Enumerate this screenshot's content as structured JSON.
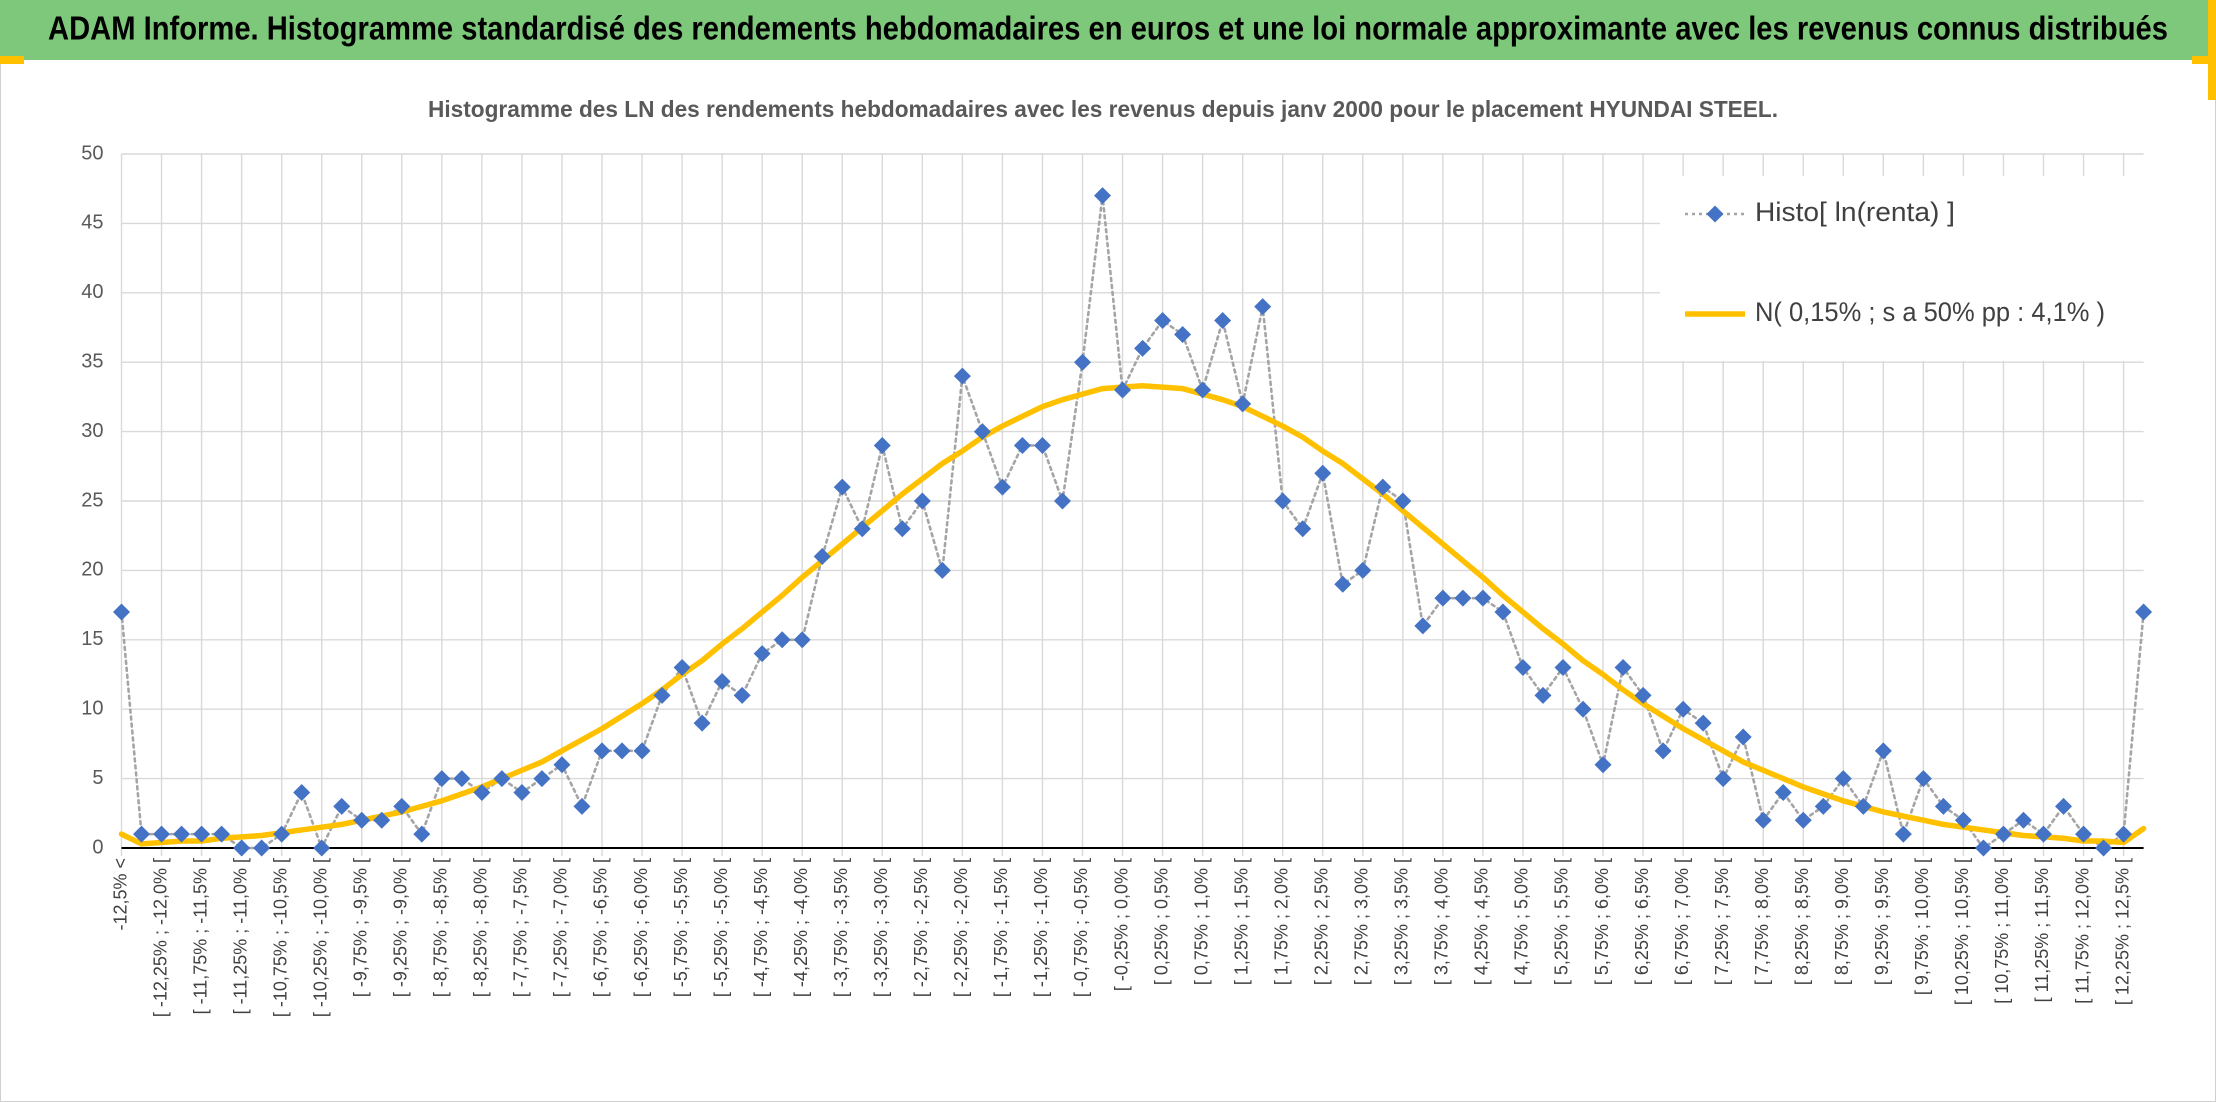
{
  "chart_data": {
    "type": "line",
    "title": "ADAM Informe. Histogramme standardisé des rendements hebdomadaires en euros et une loi normale approximante avec les revenus connus distribués",
    "subtitle": "Histogramme des LN des rendements hebdomadaires avec les revenus depuis janv 2000 pour le placement HYUNDAI STEEL.",
    "categories": [
      "-12,5% <",
      null,
      "[ -12,25% ; -12,0% [",
      null,
      "[ -11,75% ; -11,5% [",
      null,
      "[ -11,25% ; -11,0% [",
      null,
      "[ -10,75% ; -10,5% [",
      null,
      "[ -10,25% ; -10,0% [",
      null,
      "[ -9,75% ; -9,5% [",
      null,
      "[ -9,25% ; -9,0% [",
      null,
      "[ -8,75% ; -8,5% [",
      null,
      "[ -8,25% ; -8,0% [",
      null,
      "[ -7,75% ; -7,5% [",
      null,
      "[ -7,25% ; -7,0% [",
      null,
      "[ -6,75% ; -6,5% [",
      null,
      "[ -6,25% ; -6,0% [",
      null,
      "[ -5,75% ; -5,5% [",
      null,
      "[ -5,25% ; -5,0% [",
      null,
      "[ -4,75% ; -4,5% [",
      null,
      "[ -4,25% ; -4,0% [",
      null,
      "[ -3,75% ; -3,5% [",
      null,
      "[ -3,25% ; -3,0% [",
      null,
      "[ -2,75% ; -2,5% [",
      null,
      "[ -2,25% ; -2,0% [",
      null,
      "[ -1,75% ; -1,5% [",
      null,
      "[ -1,25% ; -1,0% [",
      null,
      "[ -0,75% ; -0,5% [",
      null,
      "[ -0,25% ; 0,0% [",
      null,
      "[ 0,25% ; 0,5% [",
      null,
      "[ 0,75% ; 1,0% [",
      null,
      "[ 1,25% ; 1,5% [",
      null,
      "[ 1,75% ; 2,0% [",
      null,
      "[ 2,25% ; 2,5% [",
      null,
      "[ 2,75% ; 3,0% [",
      null,
      "[ 3,25% ; 3,5% [",
      null,
      "[ 3,75% ; 4,0% [",
      null,
      "[ 4,25% ; 4,5% [",
      null,
      "[ 4,75% ; 5,0% [",
      null,
      "[ 5,25% ; 5,5% [",
      null,
      "[ 5,75% ; 6,0% [",
      null,
      "[ 6,25% ; 6,5% [",
      null,
      "[ 6,75% ; 7,0% [",
      null,
      "[ 7,25% ; 7,5% [",
      null,
      "[ 7,75% ; 8,0% [",
      null,
      "[ 8,25% ; 8,5% [",
      null,
      "[ 8,75% ; 9,0% [",
      null,
      "[ 9,25% ; 9,5% [",
      null,
      "[ 9,75% ; 10,0% [",
      null,
      "[ 10,25% ; 10,5% [",
      null,
      "[ 10,75% ; 11,0% [",
      null,
      "[ 11,25% ; 11,5% [",
      null,
      "[ 11,75% ; 12,0% [",
      null,
      "[ 12,25% ; 12,5% [",
      null
    ],
    "series": [
      {
        "name": "Histo[ ln(renta) ]",
        "color": "#4472c4",
        "line_color": "#a5a5a5",
        "line_style": "dotted",
        "marker": "diamond",
        "values": [
          17,
          1,
          1,
          1,
          1,
          1,
          0,
          0,
          1,
          4,
          0,
          3,
          2,
          2,
          3,
          1,
          5,
          5,
          4,
          5,
          4,
          5,
          6,
          3,
          7,
          7,
          7,
          11,
          13,
          9,
          12,
          11,
          14,
          15,
          15,
          21,
          26,
          23,
          29,
          23,
          25,
          20,
          34,
          30,
          26,
          29,
          29,
          25,
          35,
          47,
          33,
          36,
          38,
          37,
          33,
          38,
          32,
          39,
          25,
          23,
          27,
          19,
          20,
          26,
          25,
          16,
          18,
          18,
          18,
          17,
          13,
          11,
          13,
          10,
          6,
          13,
          11,
          7,
          10,
          9,
          5,
          8,
          2,
          4,
          2,
          3,
          5,
          3,
          7,
          1,
          5,
          3,
          2,
          0,
          1,
          2,
          1,
          3,
          1,
          0,
          1,
          17
        ]
      },
      {
        "name": "N( 0,15% ; s a 50% pp : 4,1% )",
        "color": "#ffc000",
        "line_style": "solid",
        "marker": "none",
        "values": [
          1.0,
          0.3,
          0.4,
          0.5,
          0.5,
          0.7,
          0.8,
          0.9,
          1.1,
          1.3,
          1.5,
          1.7,
          2.0,
          2.3,
          2.6,
          3.0,
          3.4,
          3.9,
          4.4,
          5.0,
          5.6,
          6.2,
          7.0,
          7.8,
          8.6,
          9.5,
          10.4,
          11.4,
          12.5,
          13.5,
          14.7,
          15.8,
          17.0,
          18.2,
          19.5,
          20.7,
          21.9,
          23.1,
          24.3,
          25.5,
          26.6,
          27.7,
          28.6,
          29.6,
          30.4,
          31.1,
          31.8,
          32.3,
          32.7,
          33.1,
          33.2,
          33.3,
          33.2,
          33.1,
          32.7,
          32.3,
          31.8,
          31.1,
          30.4,
          29.6,
          28.6,
          27.7,
          26.6,
          25.5,
          24.3,
          23.1,
          21.9,
          20.7,
          19.5,
          18.2,
          17.0,
          15.8,
          14.7,
          13.5,
          12.5,
          11.4,
          10.4,
          9.5,
          8.6,
          7.8,
          7.0,
          6.2,
          5.6,
          5.0,
          4.4,
          3.9,
          3.4,
          3.0,
          2.6,
          2.3,
          2.0,
          1.7,
          1.5,
          1.3,
          1.1,
          0.9,
          0.8,
          0.7,
          0.5,
          0.5,
          0.4,
          1.4
        ]
      }
    ],
    "ylim": [
      0,
      50
    ],
    "yticks": [
      0,
      5,
      10,
      15,
      20,
      25,
      30,
      35,
      40,
      45,
      50
    ],
    "grid": true,
    "legend": "top-right"
  }
}
